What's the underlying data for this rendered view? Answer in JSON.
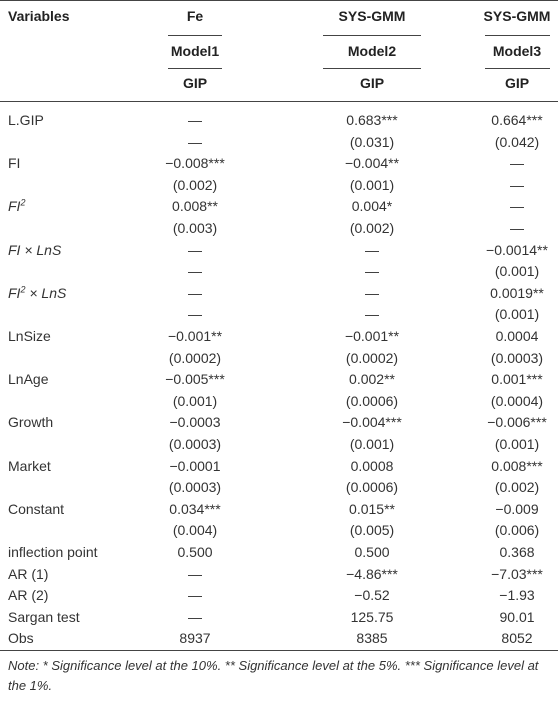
{
  "header": {
    "variable_label": "Variables",
    "columns": [
      {
        "method": "Fe",
        "model": "Model1",
        "dependent": "GIP"
      },
      {
        "method": "SYS-GMM",
        "model": "Model2",
        "dependent": "GIP"
      },
      {
        "method": "SYS-GMM",
        "model": "Model3",
        "dependent": "GIP"
      }
    ]
  },
  "table": {
    "rows": [
      [
        {
          "text": "L.GIP"
        },
        "—",
        "0.683***",
        "0.664***"
      ],
      [
        null,
        "—",
        "(0.031)",
        "(0.042)"
      ],
      [
        {
          "text": "FI"
        },
        "−0.008***",
        "−0.004**",
        "—"
      ],
      [
        null,
        "(0.002)",
        "(0.001)",
        "—"
      ],
      [
        {
          "text": "FI",
          "sup": "2",
          "italic": true
        },
        "0.008**",
        "0.004*",
        "—"
      ],
      [
        null,
        "(0.003)",
        "(0.002)",
        "—"
      ],
      [
        {
          "text": "FI × LnS",
          "italic": true
        },
        "—",
        "—",
        "−0.0014**"
      ],
      [
        null,
        "—",
        "—",
        "(0.001)"
      ],
      [
        {
          "text": "FI",
          "sup": "2",
          "tail": " × LnS",
          "italic": true
        },
        "—",
        "—",
        "0.0019**"
      ],
      [
        null,
        "—",
        "—",
        "(0.001)"
      ],
      [
        {
          "text": "LnSize"
        },
        "−0.001**",
        "−0.001**",
        "0.0004"
      ],
      [
        null,
        "(0.0002)",
        "(0.0002)",
        "(0.0003)"
      ],
      [
        {
          "text": "LnAge"
        },
        "−0.005***",
        "0.002**",
        "0.001***"
      ],
      [
        null,
        "(0.001)",
        "(0.0006)",
        "(0.0004)"
      ],
      [
        {
          "text": "Growth"
        },
        "−0.0003",
        "−0.004***",
        "−0.006***"
      ],
      [
        null,
        "(0.0003)",
        "(0.001)",
        "(0.001)"
      ],
      [
        {
          "text": "Market"
        },
        "−0.0001",
        "0.0008",
        "0.008***"
      ],
      [
        null,
        "(0.0003)",
        "(0.0006)",
        "(0.002)"
      ],
      [
        {
          "text": "Constant"
        },
        "0.034***",
        "0.015**",
        "−0.009"
      ],
      [
        null,
        "(0.004)",
        "(0.005)",
        "(0.006)"
      ],
      [
        {
          "text": "inflection point"
        },
        "0.500",
        "0.500",
        "0.368"
      ],
      [
        {
          "text": "AR (1)"
        },
        "—",
        "−4.86***",
        "−7.03***"
      ],
      [
        {
          "text": "AR (2)"
        },
        "—",
        "−0.52",
        "−1.93"
      ],
      [
        {
          "text": "Sargan test"
        },
        "—",
        "125.75",
        "90.01"
      ],
      [
        {
          "text": "Obs"
        },
        "8937",
        "8385",
        "8052"
      ]
    ]
  },
  "note": "Note: * Significance level at the 10%. ** Significance level at the 5%. *** Significance level at the 1%."
}
